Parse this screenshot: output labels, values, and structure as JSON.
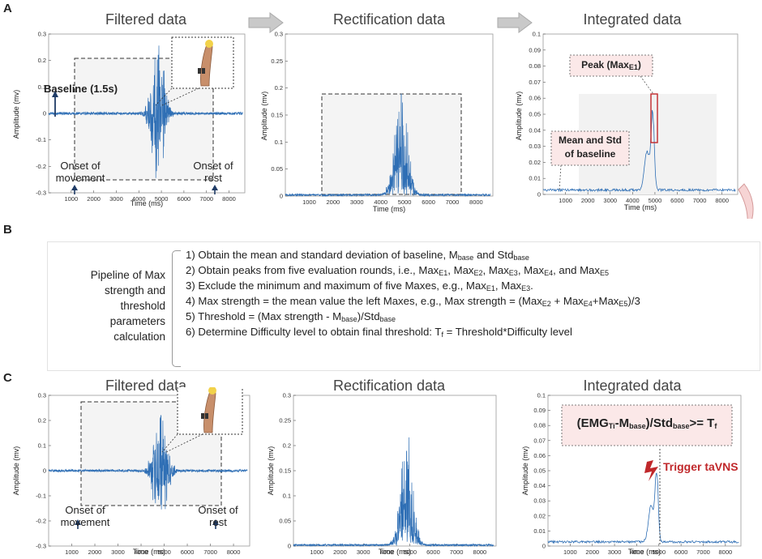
{
  "panels": {
    "A": "A",
    "B": "B",
    "C": "C"
  },
  "titles": {
    "filtered": "Filtered data",
    "rectification": "Rectification data",
    "integrated": "Integrated data"
  },
  "axes": {
    "xlabel": "Time (ms)",
    "ylabel": "Amplitude (mv)"
  },
  "annotations": {
    "baseline": "Baseline (1.5s)",
    "onset_movement_1": "Onset of",
    "onset_movement_2": "movement",
    "onset_rest_1": "Onset of",
    "onset_rest_2": "rest",
    "peak_label": "Peak (Max",
    "peak_sub": "E1",
    "peak_close": ")",
    "mean_std_1": "Mean and Std",
    "mean_std_2": "of baseline",
    "trigger": "Trigger taVNS"
  },
  "formula": {
    "open": "(EMG",
    "sub1": "Ti",
    "dash": "-M",
    "sub2": "base",
    "mid": ")/Std",
    "sub3": "base",
    "ge": ">= T",
    "sub4": "f"
  },
  "pipeline": {
    "title_lines": [
      "Pipeline of Max",
      "strength and",
      "threshold",
      "parameters",
      "calculation"
    ],
    "s1": {
      "a": "1) Obtain the mean and standard deviation of baseline, M",
      "b": "base",
      "c": " and Std",
      "d": "base"
    },
    "s2": {
      "a": "2) Obtain peaks from five evaluation rounds, i.e.,  Max",
      "b": "E1",
      "c": ", Max",
      "d": "E2",
      "e": ", Max",
      "f": "E3",
      "g": ", Max",
      "h": "E4",
      "i": ", and Max",
      "j": "E5"
    },
    "s3": {
      "a": "3) Exclude the minimum and maximum of five Maxes, e.g., Max",
      "b": "E1",
      "c": ", Max",
      "d": "E3",
      "e": "."
    },
    "s4": {
      "a": "4) Max strength = the mean value the left Maxes, e.g., Max strength = (Max",
      "b": "E2",
      "c": " + Max",
      "d": "E4",
      "e": "+Max",
      "f": "E5",
      "g": ")/3"
    },
    "s5": {
      "a": "5) Threshold = (Max strength - M",
      "b": "base",
      "c": ")/Std",
      "d": "base"
    },
    "s6": {
      "a": "6) Determine Difficulty level to obtain final threshold: T",
      "b": "f",
      "c": " = Threshold*Difficulty level"
    }
  },
  "chart_data": [
    {
      "type": "line",
      "name": "A-filtered",
      "x_ticks": [
        1000,
        2000,
        3000,
        4000,
        5000,
        6000,
        7000,
        8000
      ],
      "y_ticks": [
        -0.3,
        -0.2,
        -0.1,
        0,
        0.1,
        0.2,
        0.3
      ],
      "xlim": [
        0,
        8700
      ],
      "ylim": [
        -0.3,
        0.3
      ]
    },
    {
      "type": "line",
      "name": "A-rectification",
      "x_ticks": [
        1000,
        2000,
        3000,
        4000,
        5000,
        6000,
        7000,
        8000
      ],
      "y_ticks": [
        0,
        0.05,
        0.1,
        0.15,
        0.2,
        0.25,
        0.3
      ],
      "xlim": [
        0,
        8700
      ],
      "ylim": [
        0,
        0.3
      ]
    },
    {
      "type": "line",
      "name": "A-integrated",
      "x_ticks": [
        1000,
        2000,
        3000,
        4000,
        5000,
        6000,
        7000,
        8000
      ],
      "y_ticks": [
        0,
        0.01,
        0.02,
        0.03,
        0.04,
        0.05,
        0.06,
        0.07,
        0.08,
        0.09,
        0.1
      ],
      "xlim": [
        0,
        8700
      ],
      "ylim": [
        0,
        0.1
      ]
    },
    {
      "type": "line",
      "name": "C-filtered",
      "x_ticks": [
        1000,
        2000,
        3000,
        4000,
        5000,
        6000,
        7000,
        8000
      ],
      "y_ticks": [
        -0.3,
        -0.2,
        -0.1,
        0,
        0.1,
        0.2,
        0.3
      ],
      "xlim": [
        0,
        8700
      ],
      "ylim": [
        -0.3,
        0.3
      ]
    },
    {
      "type": "line",
      "name": "C-rectification",
      "x_ticks": [
        1000,
        2000,
        3000,
        4000,
        5000,
        6000,
        7000,
        8000
      ],
      "y_ticks": [
        0,
        0.05,
        0.1,
        0.15,
        0.2,
        0.25,
        0.3
      ],
      "xlim": [
        0,
        8700
      ],
      "ylim": [
        0,
        0.3
      ]
    },
    {
      "type": "line",
      "name": "C-integrated",
      "x_ticks": [
        1000,
        2000,
        3000,
        4000,
        5000,
        6000,
        7000,
        8000
      ],
      "y_ticks": [
        0,
        0.01,
        0.02,
        0.03,
        0.04,
        0.05,
        0.06,
        0.07,
        0.08,
        0.09,
        0.1
      ],
      "xlim": [
        0,
        8700
      ],
      "ylim": [
        0,
        0.1
      ]
    }
  ],
  "colors": {
    "signal": "#2f6fb5",
    "accent_red": "#c0282b",
    "arrow_navy": "#1f3b66",
    "shade": "#f2f2f2",
    "callout_fill": "#fbe8e8"
  },
  "icons": [
    "arm-sensor-icon",
    "lightning-icon",
    "chevron-arrow-icon",
    "curved-arrow-icon"
  ]
}
